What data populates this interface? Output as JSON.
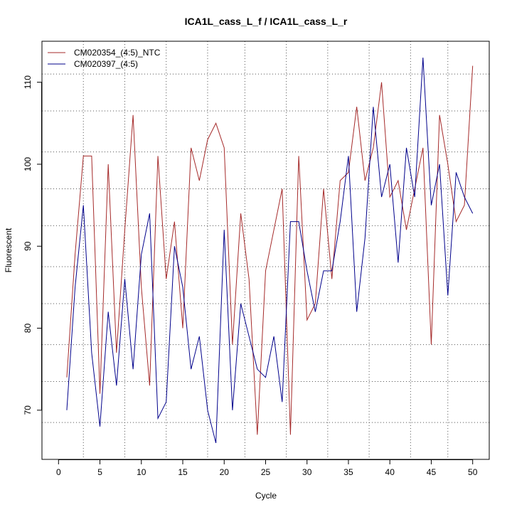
{
  "chart_data": {
    "type": "line",
    "title": "ICA1L_cass_L_f / ICA1L_cass_L_r",
    "xlabel": "Cycle",
    "ylabel": "Fluorescent",
    "xlim": [
      -2,
      52
    ],
    "ylim": [
      64,
      115
    ],
    "xticks": [
      0,
      5,
      10,
      15,
      20,
      25,
      30,
      35,
      40,
      45,
      50
    ],
    "yticks": [
      70,
      80,
      90,
      100,
      110
    ],
    "grid": {
      "vertical_dotted": [
        3,
        8,
        13,
        18,
        22.5,
        27.5,
        32.5,
        37.5,
        42.5,
        47
      ],
      "horizontal_dotted": [
        68.5,
        73.5,
        78,
        83,
        87.5,
        92.5,
        97,
        101.5,
        106.5,
        111
      ]
    },
    "legend_position": "top-left",
    "x": [
      1,
      2,
      3,
      4,
      5,
      6,
      7,
      8,
      9,
      10,
      11,
      12,
      13,
      14,
      15,
      16,
      17,
      18,
      19,
      20,
      21,
      22,
      23,
      24,
      25,
      26,
      27,
      28,
      29,
      30,
      31,
      32,
      33,
      34,
      35,
      36,
      37,
      38,
      39,
      40,
      41,
      42,
      43,
      44,
      45,
      46,
      47,
      48,
      49,
      50
    ],
    "series": [
      {
        "name": "CM020354_(4:5)_NTC",
        "color": "#a52a2a",
        "values": [
          74,
          89,
          101,
          101,
          72,
          100,
          77,
          92,
          106,
          85,
          73,
          101,
          86,
          93,
          80,
          102,
          98,
          103,
          105,
          102,
          78,
          94,
          86,
          67,
          87,
          92,
          97,
          67,
          101,
          81,
          83,
          97,
          86,
          98,
          99,
          107,
          98,
          102,
          110,
          96,
          98,
          92,
          97,
          102,
          78,
          106,
          100,
          93,
          95,
          112
        ]
      },
      {
        "name": "CM020397_(4:5)",
        "color": "#00008b",
        "values": [
          70,
          85,
          95,
          77,
          68,
          82,
          73,
          86,
          75,
          89,
          94,
          69,
          71,
          90,
          85,
          75,
          79,
          70,
          66,
          92,
          70,
          83,
          79,
          75,
          74,
          79,
          71,
          93,
          93,
          87,
          82,
          87,
          87,
          93,
          101,
          82,
          91,
          107,
          96,
          100,
          88,
          102,
          96,
          113,
          95,
          100,
          84,
          99,
          96,
          94
        ]
      }
    ]
  }
}
